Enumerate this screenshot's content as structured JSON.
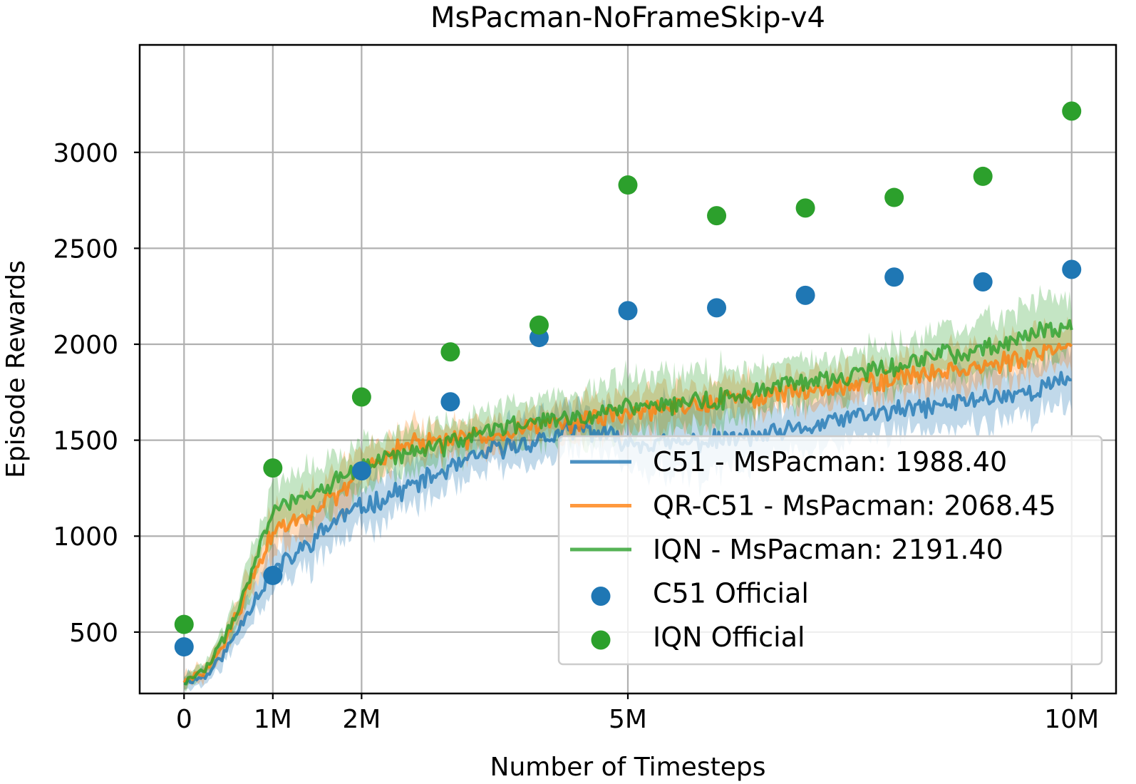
{
  "chart_data": {
    "type": "line",
    "title": "MsPacman-NoFrameSkip-v4",
    "xlabel": "Number of Timesteps",
    "ylabel": "Episode Rewards",
    "xlim": [
      -500000,
      10500000
    ],
    "ylim": [
      180,
      3560
    ],
    "x_ticks": [
      {
        "value": 0,
        "label": "0"
      },
      {
        "value": 1000000,
        "label": "1M"
      },
      {
        "value": 2000000,
        "label": "2M"
      },
      {
        "value": 5000000,
        "label": "5M"
      },
      {
        "value": 10000000,
        "label": "10M"
      }
    ],
    "y_ticks": [
      {
        "value": 500,
        "label": "500"
      },
      {
        "value": 1000,
        "label": "1000"
      },
      {
        "value": 1500,
        "label": "1500"
      },
      {
        "value": 2000,
        "label": "2000"
      },
      {
        "value": 2500,
        "label": "2500"
      },
      {
        "value": 3000,
        "label": "3000"
      }
    ],
    "grid": true,
    "legend_position": "bottom-right",
    "series": [
      {
        "name": "C51 - MsPacman: 1988.40",
        "kind": "line",
        "color": "#1f77b4",
        "x": [
          0,
          250000,
          500000,
          750000,
          1000000,
          1250000,
          1500000,
          1750000,
          2000000,
          2500000,
          3000000,
          3500000,
          4000000,
          4500000,
          5000000,
          5500000,
          6000000,
          6500000,
          7000000,
          7500000,
          8000000,
          8500000,
          9000000,
          9500000,
          10000000
        ],
        "y": [
          240,
          270,
          420,
          640,
          820,
          900,
          1000,
          1100,
          1150,
          1250,
          1350,
          1450,
          1500,
          1560,
          1490,
          1480,
          1500,
          1520,
          1560,
          1620,
          1650,
          1680,
          1720,
          1750,
          1820
        ],
        "band": [
          40,
          40,
          70,
          90,
          110,
          120,
          130,
          140,
          120,
          120,
          110,
          110,
          110,
          120,
          160,
          170,
          180,
          150,
          130,
          120,
          120,
          130,
          140,
          140,
          130
        ]
      },
      {
        "name": "QR-C51 - MsPacman: 2068.45",
        "kind": "line",
        "color": "#ff7f0e",
        "x": [
          0,
          250000,
          500000,
          750000,
          1000000,
          1250000,
          1500000,
          1750000,
          2000000,
          2500000,
          3000000,
          3500000,
          4000000,
          4500000,
          5000000,
          5500000,
          6000000,
          6500000,
          7000000,
          7500000,
          8000000,
          8500000,
          9000000,
          9500000,
          10000000
        ],
        "y": [
          240,
          300,
          480,
          760,
          1020,
          1080,
          1150,
          1200,
          1350,
          1480,
          1490,
          1540,
          1580,
          1600,
          1640,
          1670,
          1700,
          1730,
          1760,
          1790,
          1820,
          1860,
          1890,
          1920,
          2010
        ],
        "band": [
          40,
          40,
          70,
          90,
          110,
          120,
          120,
          120,
          100,
          90,
          80,
          80,
          80,
          90,
          100,
          100,
          100,
          90,
          90,
          90,
          90,
          100,
          110,
          110,
          100
        ]
      },
      {
        "name": "IQN - MsPacman: 2191.40",
        "kind": "line",
        "color": "#2ca02c",
        "x": [
          0,
          250000,
          500000,
          750000,
          1000000,
          1250000,
          1500000,
          1750000,
          2000000,
          2500000,
          3000000,
          3500000,
          4000000,
          4500000,
          5000000,
          5500000,
          6000000,
          6500000,
          7000000,
          7500000,
          8000000,
          8500000,
          9000000,
          9500000,
          10000000
        ],
        "y": [
          240,
          310,
          500,
          800,
          1120,
          1200,
          1250,
          1290,
          1370,
          1430,
          1480,
          1560,
          1600,
          1620,
          1680,
          1690,
          1710,
          1760,
          1800,
          1840,
          1890,
          1940,
          1980,
          2040,
          2110
        ],
        "band": [
          40,
          40,
          70,
          100,
          130,
          140,
          140,
          130,
          110,
          100,
          100,
          100,
          110,
          130,
          150,
          140,
          140,
          120,
          110,
          110,
          120,
          130,
          140,
          150,
          140
        ]
      },
      {
        "name": "C51 Official",
        "kind": "scatter",
        "color": "#1f77b4",
        "x": [
          0,
          1000000,
          2000000,
          3000000,
          4000000,
          5000000,
          6000000,
          7000000,
          8000000,
          9000000,
          10000000
        ],
        "y": [
          423,
          795,
          1340,
          1700,
          2035,
          2175,
          2190,
          2255,
          2350,
          2325,
          2390
        ]
      },
      {
        "name": "IQN Official",
        "kind": "scatter",
        "color": "#2ca02c",
        "x": [
          0,
          1000000,
          2000000,
          3000000,
          4000000,
          5000000,
          6000000,
          7000000,
          8000000,
          9000000,
          10000000
        ],
        "y": [
          540,
          1355,
          1725,
          1960,
          2100,
          2830,
          2670,
          2710,
          2765,
          2875,
          3215
        ]
      }
    ]
  }
}
